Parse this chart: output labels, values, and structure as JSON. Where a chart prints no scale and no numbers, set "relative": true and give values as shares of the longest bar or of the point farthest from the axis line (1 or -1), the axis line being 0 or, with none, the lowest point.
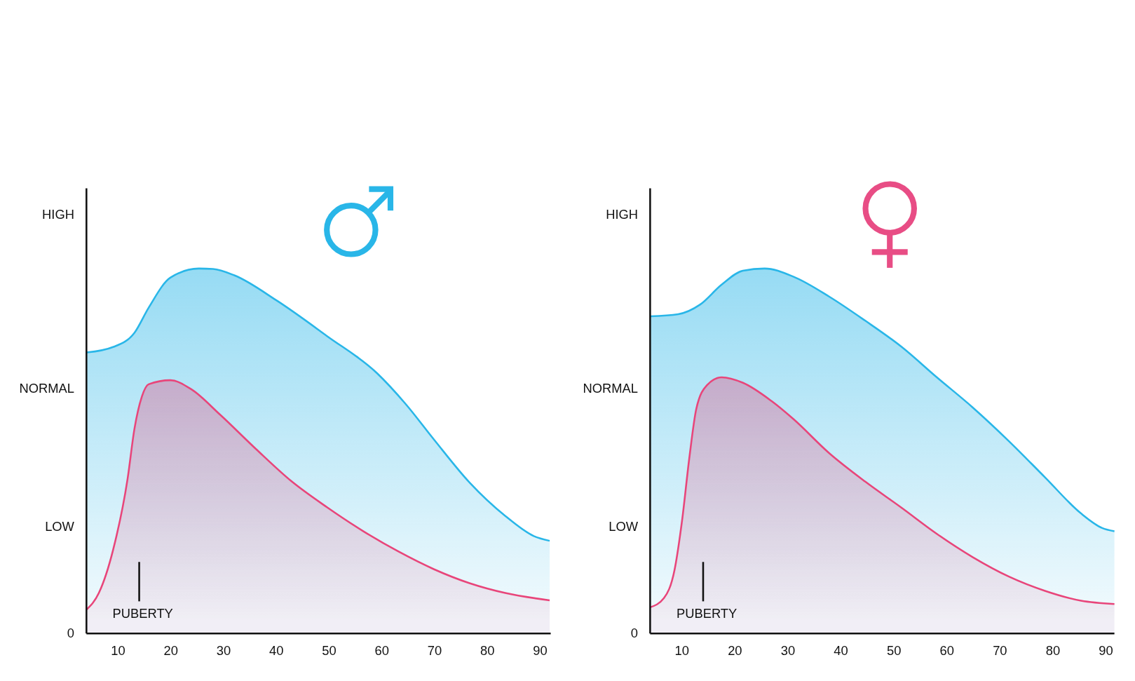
{
  "chart_data": [
    {
      "type": "area",
      "relative": true,
      "xlim": [
        4,
        92
      ],
      "xticks": [
        10,
        20,
        30,
        40,
        50,
        60,
        70,
        80,
        90
      ],
      "series": [
        {
          "color": "#29b6e8",
          "x": [
            4.05,
            9.05,
            13.1,
            15.8,
            19.9,
            25.3,
            28,
            32.1,
            40.1,
            49.6,
            59.1,
            64.5,
            69.9,
            76.6,
            83.4,
            88.8,
            91.8
          ],
          "values": [
            0.77,
            0.785,
            0.824,
            0.893,
            0.975,
            1,
            0.999,
            0.981,
            0.912,
            0.815,
            0.713,
            0.629,
            0.531,
            0.414,
            0.322,
            0.267,
            0.254
          ]
        },
        {
          "color": "#e8457a",
          "x": [
            4.05,
            6.35,
            9.05,
            11.8,
            13.1,
            14.5,
            15.8,
            19.9,
            23.9,
            29.3,
            36.1,
            42.8,
            49.6,
            56.4,
            63.1,
            69.9,
            76.6,
            83.4,
            91.8
          ],
          "values": [
            0.066,
            0.111,
            0.229,
            0.424,
            0.561,
            0.649,
            0.683,
            0.694,
            0.669,
            0.6,
            0.506,
            0.418,
            0.346,
            0.281,
            0.225,
            0.176,
            0.138,
            0.111,
            0.091
          ]
        }
      ],
      "ref_lines": [
        {
          "axis": "x",
          "value": 14,
          "label": "PUBERTY"
        }
      ],
      "annotations": [
        "HIGH",
        "NORMAL",
        "LOW",
        "0"
      ]
    },
    {
      "type": "area",
      "relative": true,
      "xlim": [
        4,
        91.6
      ],
      "xticks": [
        10,
        20,
        30,
        40,
        50,
        60,
        70,
        80,
        90
      ],
      "series": [
        {
          "color": "#29b6e8",
          "x": [
            4.0,
            9.3,
            13.4,
            17.5,
            21.5,
            25.6,
            31,
            37.8,
            44.6,
            51.4,
            58.1,
            64.9,
            71.7,
            78.5,
            85.3,
            89.3,
            91.6
          ],
          "values": [
            0.869,
            0.875,
            0.901,
            0.956,
            0.994,
            1,
            0.978,
            0.923,
            0.857,
            0.786,
            0.702,
            0.619,
            0.527,
            0.428,
            0.329,
            0.289,
            0.28
          ]
        },
        {
          "color": "#e8457a",
          "x": [
            4.0,
            6.6,
            8.6,
            10,
            11.4,
            12.7,
            14.7,
            17.5,
            21.5,
            26.9,
            31,
            37.8,
            44.6,
            51.4,
            58.1,
            64.9,
            71.7,
            78.5,
            85.3,
            91.6
          ],
          "values": [
            0.072,
            0.097,
            0.174,
            0.307,
            0.482,
            0.615,
            0.68,
            0.702,
            0.687,
            0.637,
            0.588,
            0.494,
            0.416,
            0.345,
            0.273,
            0.209,
            0.156,
            0.117,
            0.09,
            0.081
          ]
        }
      ],
      "ref_lines": [
        {
          "axis": "x",
          "value": 14,
          "label": "PUBERTY"
        }
      ],
      "annotations": [
        "HIGH",
        "NORMAL",
        "LOW",
        "0"
      ]
    }
  ]
}
